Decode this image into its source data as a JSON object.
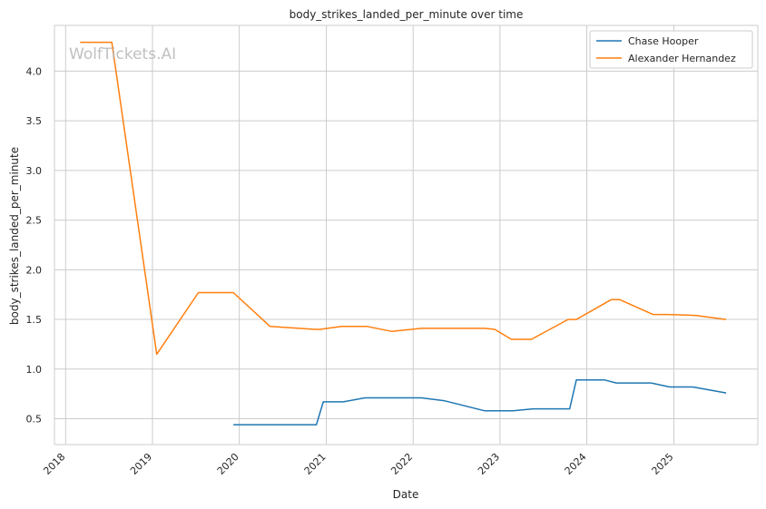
{
  "chart_data": {
    "type": "line",
    "title": "body_strikes_landed_per_minute over time",
    "xlabel": "Date",
    "ylabel": "body_strikes_landed_per_minute",
    "watermark": "WolfTickets.AI",
    "x_ticks": [
      "2018",
      "2019",
      "2020",
      "2021",
      "2022",
      "2023",
      "2024",
      "2025"
    ],
    "y_ticks": [
      "0.5",
      "1.0",
      "1.5",
      "2.0",
      "2.5",
      "3.0",
      "3.5",
      "4.0"
    ],
    "xlim": [
      "2017-11-15",
      "2025-12-20"
    ],
    "ylim": [
      0.24,
      4.46
    ],
    "grid": true,
    "legend_position": "top-right",
    "series": [
      {
        "name": "Chase Hooper",
        "color": "#1f77b4",
        "points": [
          [
            "2019-12-07",
            0.44
          ],
          [
            "2020-10-31",
            0.44
          ],
          [
            "2020-11-20",
            0.44
          ],
          [
            "2020-12-19",
            0.67
          ],
          [
            "2021-03-13",
            0.67
          ],
          [
            "2021-06-12",
            0.71
          ],
          [
            "2022-02-05",
            0.71
          ],
          [
            "2022-05-14",
            0.68
          ],
          [
            "2022-10-29",
            0.58
          ],
          [
            "2023-02-25",
            0.58
          ],
          [
            "2023-05-20",
            0.6
          ],
          [
            "2023-10-21",
            0.6
          ],
          [
            "2023-11-18",
            0.89
          ],
          [
            "2024-03-16",
            0.89
          ],
          [
            "2024-05-04",
            0.86
          ],
          [
            "2024-09-28",
            0.86
          ],
          [
            "2024-12-14",
            0.82
          ],
          [
            "2025-03-22",
            0.82
          ],
          [
            "2025-08-09",
            0.76
          ]
        ]
      },
      {
        "name": "Alexander Hernandez",
        "color": "#ff7f0e",
        "points": [
          [
            "2018-03-03",
            4.29
          ],
          [
            "2018-07-14",
            4.29
          ],
          [
            "2019-01-19",
            1.15
          ],
          [
            "2019-07-13",
            1.77
          ],
          [
            "2019-12-07",
            1.77
          ],
          [
            "2020-05-09",
            1.43
          ],
          [
            "2020-11-14",
            1.4
          ],
          [
            "2020-12-05",
            1.4
          ],
          [
            "2021-03-06",
            1.43
          ],
          [
            "2021-06-19",
            1.43
          ],
          [
            "2021-10-02",
            1.38
          ],
          [
            "2022-02-05",
            1.41
          ],
          [
            "2022-10-29",
            1.41
          ],
          [
            "2022-12-10",
            1.4
          ],
          [
            "2023-02-18",
            1.3
          ],
          [
            "2023-05-13",
            1.3
          ],
          [
            "2023-10-14",
            1.5
          ],
          [
            "2023-11-18",
            1.5
          ],
          [
            "2024-04-13",
            1.7
          ],
          [
            "2024-05-18",
            1.7
          ],
          [
            "2024-10-05",
            1.55
          ],
          [
            "2024-12-07",
            1.55
          ],
          [
            "2025-04-05",
            1.54
          ],
          [
            "2025-08-09",
            1.5
          ]
        ]
      }
    ]
  }
}
